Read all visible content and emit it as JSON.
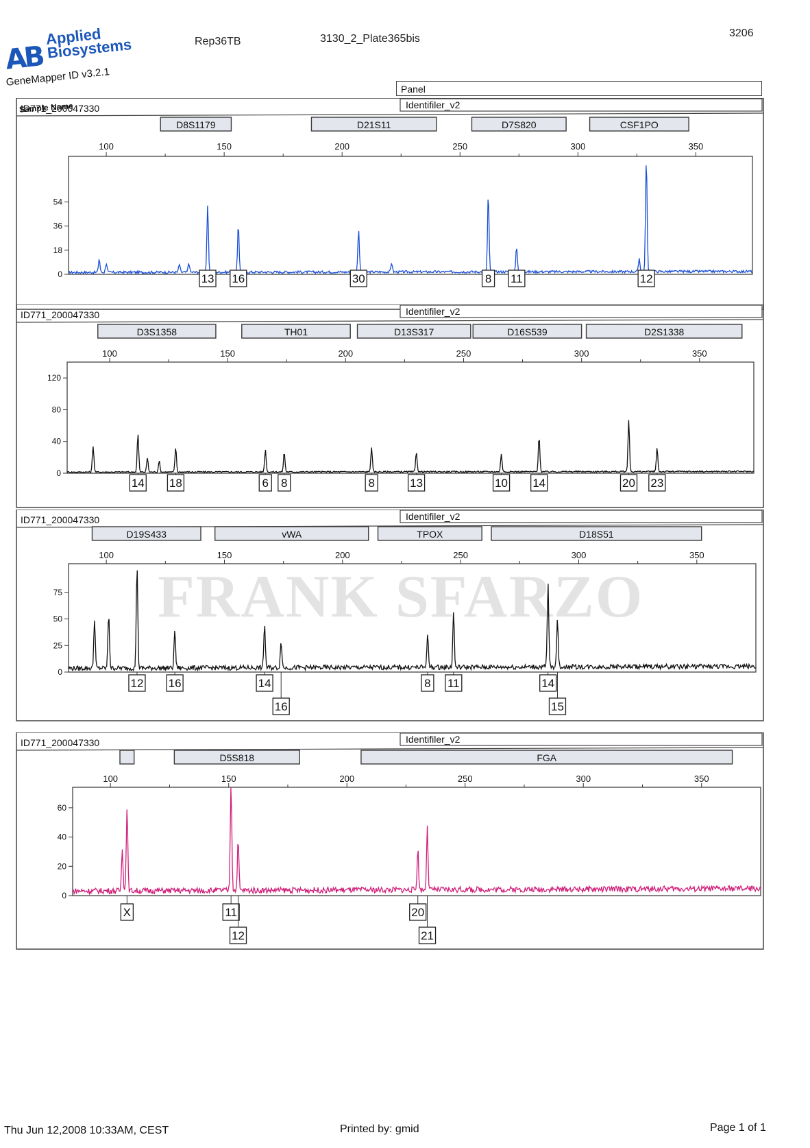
{
  "header": {
    "logo_mark": "AB",
    "brand_line1": "Applied",
    "brand_line2": "Biosystems",
    "product": "GeneMapper ID v3.2.1",
    "project": "Rep36TB",
    "plate": "3130_2_Plate365bis",
    "page_code": "3206",
    "panel_label": "Panel",
    "sample_name_label": "Sample Name"
  },
  "watermark": "FRANK SFARZO",
  "footer": {
    "datetime": "Thu Jun 12,2008 10:33AM, CEST",
    "printed_by": "Printed by: gmid",
    "page": "Page 1 of 1"
  },
  "colors": {
    "blue": "#1a4fd6",
    "green": "#111111",
    "yellow": "#111111",
    "red": "#d0207a",
    "frame": "#444444"
  },
  "chart_data": [
    {
      "type": "line",
      "sample": "ID771_200047330",
      "panel": "Identifiler_v2",
      "dye": "blue",
      "markers": [
        {
          "name": "D8S1179",
          "range": [
            123,
            153
          ]
        },
        {
          "name": "D21S11",
          "range": [
            187,
            240
          ]
        },
        {
          "name": "D7S820",
          "range": [
            255,
            295
          ]
        },
        {
          "name": "CSF1PO",
          "range": [
            305,
            347
          ]
        }
      ],
      "x_ticks": [
        100,
        150,
        200,
        250,
        300,
        350
      ],
      "xlim": [
        84,
        374
      ],
      "y_ticks": [
        0,
        18,
        36,
        54
      ],
      "ylim": [
        0,
        88
      ],
      "peaks": [
        {
          "x": 97,
          "h": 10
        },
        {
          "x": 100,
          "h": 7
        },
        {
          "x": 131,
          "h": 6
        },
        {
          "x": 135,
          "h": 7
        },
        {
          "x": 143,
          "h": 50,
          "allele": "13"
        },
        {
          "x": 156,
          "h": 36,
          "allele": "16"
        },
        {
          "x": 207,
          "h": 32,
          "allele": "30"
        },
        {
          "x": 221,
          "h": 7
        },
        {
          "x": 262,
          "h": 58,
          "allele": "8"
        },
        {
          "x": 274,
          "h": 19,
          "allele": "11"
        },
        {
          "x": 326,
          "h": 10
        },
        {
          "x": 329,
          "h": 85,
          "allele": "12"
        }
      ]
    },
    {
      "type": "line",
      "sample": "ID771_200047330",
      "panel": "Identifiler_v2",
      "dye": "green",
      "markers": [
        {
          "name": "D3S1358",
          "range": [
            95,
            145
          ]
        },
        {
          "name": "TH01",
          "range": [
            156,
            202
          ]
        },
        {
          "name": "D13S317",
          "range": [
            205,
            253
          ]
        },
        {
          "name": "D16S539",
          "range": [
            254,
            300
          ]
        },
        {
          "name": "D2S1338",
          "range": [
            302,
            368
          ]
        }
      ],
      "x_ticks": [
        100,
        150,
        200,
        250,
        300,
        350
      ],
      "xlim": [
        82,
        373
      ],
      "y_ticks": [
        0,
        40,
        80,
        120
      ],
      "ylim": [
        0,
        140
      ],
      "peaks": [
        {
          "x": 93,
          "h": 33
        },
        {
          "x": 112,
          "h": 48,
          "allele": "14"
        },
        {
          "x": 116,
          "h": 18
        },
        {
          "x": 121,
          "h": 14
        },
        {
          "x": 128,
          "h": 31,
          "allele": "18"
        },
        {
          "x": 166,
          "h": 28,
          "allele": "6"
        },
        {
          "x": 174,
          "h": 25,
          "allele": "8"
        },
        {
          "x": 211,
          "h": 31,
          "allele": "8"
        },
        {
          "x": 230,
          "h": 25,
          "allele": "13"
        },
        {
          "x": 266,
          "h": 22,
          "allele": "10"
        },
        {
          "x": 282,
          "h": 44,
          "allele": "14"
        },
        {
          "x": 320,
          "h": 65,
          "allele": "20"
        },
        {
          "x": 332,
          "h": 30,
          "allele": "23"
        }
      ]
    },
    {
      "type": "line",
      "sample": "ID771_200047330",
      "panel": "Identifiler_v2",
      "dye": "yellow",
      "markers": [
        {
          "name": "D19S433",
          "range": [
            94,
            140
          ]
        },
        {
          "name": "vWA",
          "range": [
            146,
            211
          ]
        },
        {
          "name": "TPOX",
          "range": [
            215,
            259
          ]
        },
        {
          "name": "D18S51",
          "range": [
            263,
            352
          ]
        }
      ],
      "x_ticks": [
        100,
        150,
        200,
        250,
        300,
        350
      ],
      "xlim": [
        84,
        375
      ],
      "y_ticks": [
        0,
        25,
        50,
        75
      ],
      "ylim": [
        0,
        102
      ],
      "peaks": [
        {
          "x": 95,
          "h": 47
        },
        {
          "x": 101,
          "h": 52
        },
        {
          "x": 113,
          "h": 98,
          "allele": "12"
        },
        {
          "x": 129,
          "h": 36,
          "allele": "16"
        },
        {
          "x": 167,
          "h": 42,
          "allele": "14"
        },
        {
          "x": 174,
          "h": 26,
          "allele": "16"
        },
        {
          "x": 236,
          "h": 32,
          "allele": "8"
        },
        {
          "x": 247,
          "h": 52,
          "allele": "11"
        },
        {
          "x": 287,
          "h": 78,
          "allele": "14"
        },
        {
          "x": 291,
          "h": 44,
          "allele": "15"
        }
      ]
    },
    {
      "type": "line",
      "sample": "ID771_200047330",
      "panel": "Identifiler_v2",
      "dye": "red",
      "markers": [
        {
          "name": "",
          "range": [
            104,
            110
          ]
        },
        {
          "name": "D5S818",
          "range": [
            127,
            180
          ]
        },
        {
          "name": "FGA",
          "range": [
            206,
            363
          ]
        }
      ],
      "x_ticks": [
        100,
        150,
        200,
        250,
        300,
        350
      ],
      "xlim": [
        84,
        375
      ],
      "y_ticks": [
        0,
        20,
        40,
        60
      ],
      "ylim": [
        0,
        74
      ],
      "peaks": [
        {
          "x": 105,
          "h": 30
        },
        {
          "x": 107,
          "h": 58,
          "allele": "X"
        },
        {
          "x": 151,
          "h": 74,
          "allele": "11"
        },
        {
          "x": 154,
          "h": 34,
          "allele": "12"
        },
        {
          "x": 230,
          "h": 28,
          "allele": "20"
        },
        {
          "x": 234,
          "h": 42,
          "allele": "21"
        }
      ]
    }
  ]
}
